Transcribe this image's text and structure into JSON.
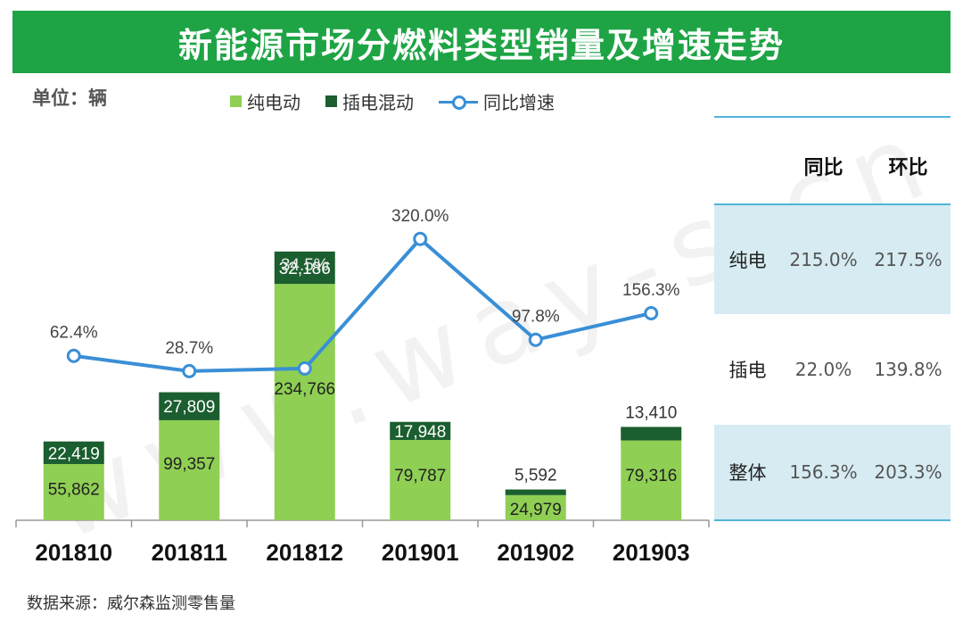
{
  "header": {
    "title": "新能源市场分燃料类型销量及增速走势"
  },
  "unit_label": "单位：辆",
  "source_label": "数据来源：威尔森监测零售量",
  "watermark": "www.way-s.cn",
  "colors": {
    "title_bg": "#1ea445",
    "bev": "#8fcf54",
    "phev": "#1b5e2f",
    "line": "#3a8fd6",
    "table_shade": "#d6ebf2"
  },
  "chart_data": {
    "type": "bar",
    "stacked": true,
    "categories": [
      "201810",
      "201811",
      "201812",
      "201901",
      "201902",
      "201903"
    ],
    "series": [
      {
        "name": "纯电动",
        "values": [
          55862,
          99357,
          234766,
          79787,
          24979,
          79316
        ],
        "labels": [
          "55,862",
          "99,357",
          "234,766",
          "79,787",
          "24,979",
          "79,316"
        ]
      },
      {
        "name": "插电混动",
        "values": [
          22419,
          27809,
          32186,
          17948,
          5592,
          13410
        ],
        "labels": [
          "22,419",
          "27,809",
          "32,186",
          "17,948",
          "5,592",
          "13,410"
        ]
      }
    ],
    "line_series": {
      "name": "同比增速",
      "values": [
        62.4,
        28.7,
        34.5,
        320.0,
        97.8,
        156.3
      ],
      "labels": [
        "62.4%",
        "28.7%",
        "34.5%",
        "320.0%",
        "97.8%",
        "156.3%"
      ]
    },
    "ylim": [
      0,
      320000
    ],
    "line_ylim": [
      -300,
      410
    ],
    "legend_position": "top",
    "grid": false
  },
  "side_table": {
    "headers": [
      "同比",
      "环比"
    ],
    "rows": [
      {
        "label": "纯电",
        "yoy": "215.0%",
        "mom": "217.5%"
      },
      {
        "label": "插电",
        "yoy": "22.0%",
        "mom": "139.8%"
      },
      {
        "label": "整体",
        "yoy": "156.3%",
        "mom": "203.3%"
      }
    ]
  }
}
